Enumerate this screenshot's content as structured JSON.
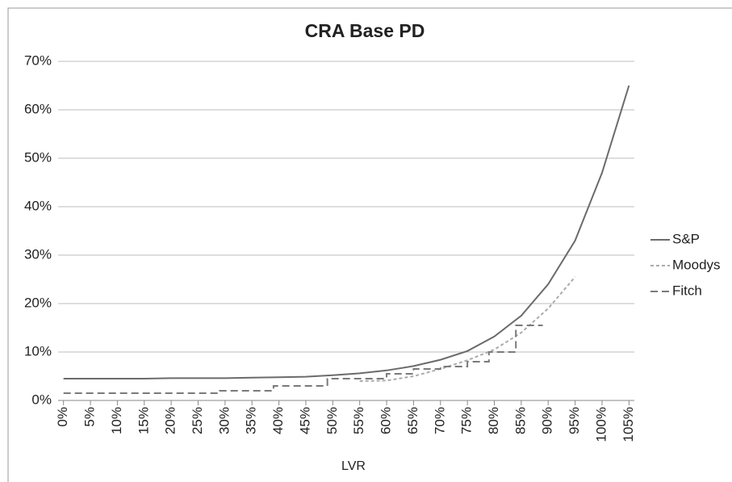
{
  "chart_data": {
    "type": "line",
    "title": "CRA Base PD",
    "x_label": "LVR",
    "xlim": [
      -1,
      106
    ],
    "ylim": [
      0,
      70
    ],
    "xticks": [
      {
        "value": 0,
        "label": "0%"
      },
      {
        "value": 5,
        "label": "5%"
      },
      {
        "value": 10,
        "label": "10%"
      },
      {
        "value": 15,
        "label": "15%"
      },
      {
        "value": 20,
        "label": "20%"
      },
      {
        "value": 25,
        "label": "25%"
      },
      {
        "value": 30,
        "label": "30%"
      },
      {
        "value": 35,
        "label": "35%"
      },
      {
        "value": 40,
        "label": "40%"
      },
      {
        "value": 45,
        "label": "45%"
      },
      {
        "value": 50,
        "label": "50%"
      },
      {
        "value": 55,
        "label": "55%"
      },
      {
        "value": 60,
        "label": "60%"
      },
      {
        "value": 65,
        "label": "65%"
      },
      {
        "value": 70,
        "label": "70%"
      },
      {
        "value": 75,
        "label": "75%"
      },
      {
        "value": 80,
        "label": "80%"
      },
      {
        "value": 85,
        "label": "85%"
      },
      {
        "value": 90,
        "label": "90%"
      },
      {
        "value": 95,
        "label": "95%"
      },
      {
        "value": 100,
        "label": "100%"
      },
      {
        "value": 105,
        "label": "105%"
      }
    ],
    "yticks": [
      {
        "value": 0,
        "label": "0%"
      },
      {
        "value": 10,
        "label": "10%"
      },
      {
        "value": 20,
        "label": "20%"
      },
      {
        "value": 30,
        "label": "30%"
      },
      {
        "value": 40,
        "label": "40%"
      },
      {
        "value": 50,
        "label": "50%"
      },
      {
        "value": 60,
        "label": "60%"
      },
      {
        "value": 70,
        "label": "70%"
      }
    ],
    "grid": true,
    "legend": "right",
    "series": [
      {
        "name": "S&P",
        "color": "#6b6b6b",
        "dash": "solid",
        "x": [
          0,
          5,
          10,
          15,
          20,
          25,
          30,
          35,
          40,
          45,
          50,
          55,
          60,
          65,
          70,
          75,
          80,
          85,
          90,
          95,
          100,
          105
        ],
        "values": [
          4.5,
          4.5,
          4.5,
          4.5,
          4.6,
          4.6,
          4.6,
          4.7,
          4.8,
          4.9,
          5.2,
          5.6,
          6.2,
          7.1,
          8.4,
          10.2,
          13.2,
          17.5,
          24,
          33,
          47,
          65
        ]
      },
      {
        "name": "Moodys",
        "color": "#ababab",
        "dash": "dotted",
        "x": [
          55,
          60,
          65,
          70,
          75,
          80,
          85,
          90,
          95
        ],
        "values": [
          4,
          4.1,
          5,
          6.5,
          8.3,
          10.5,
          14,
          19,
          25.5
        ]
      },
      {
        "name": "Fitch",
        "color": "#7a7a7a",
        "dash": "dashed",
        "x": [
          0,
          29,
          29,
          39,
          39,
          49,
          49,
          60,
          60,
          65,
          65,
          70,
          70,
          75,
          75,
          79,
          79,
          84,
          84,
          89
        ],
        "values": [
          1.5,
          1.5,
          2,
          2,
          3,
          3,
          4.5,
          4.5,
          5.5,
          5.5,
          6.5,
          6.5,
          7,
          7,
          8,
          8,
          10,
          10,
          15.5,
          15.5
        ]
      }
    ]
  }
}
